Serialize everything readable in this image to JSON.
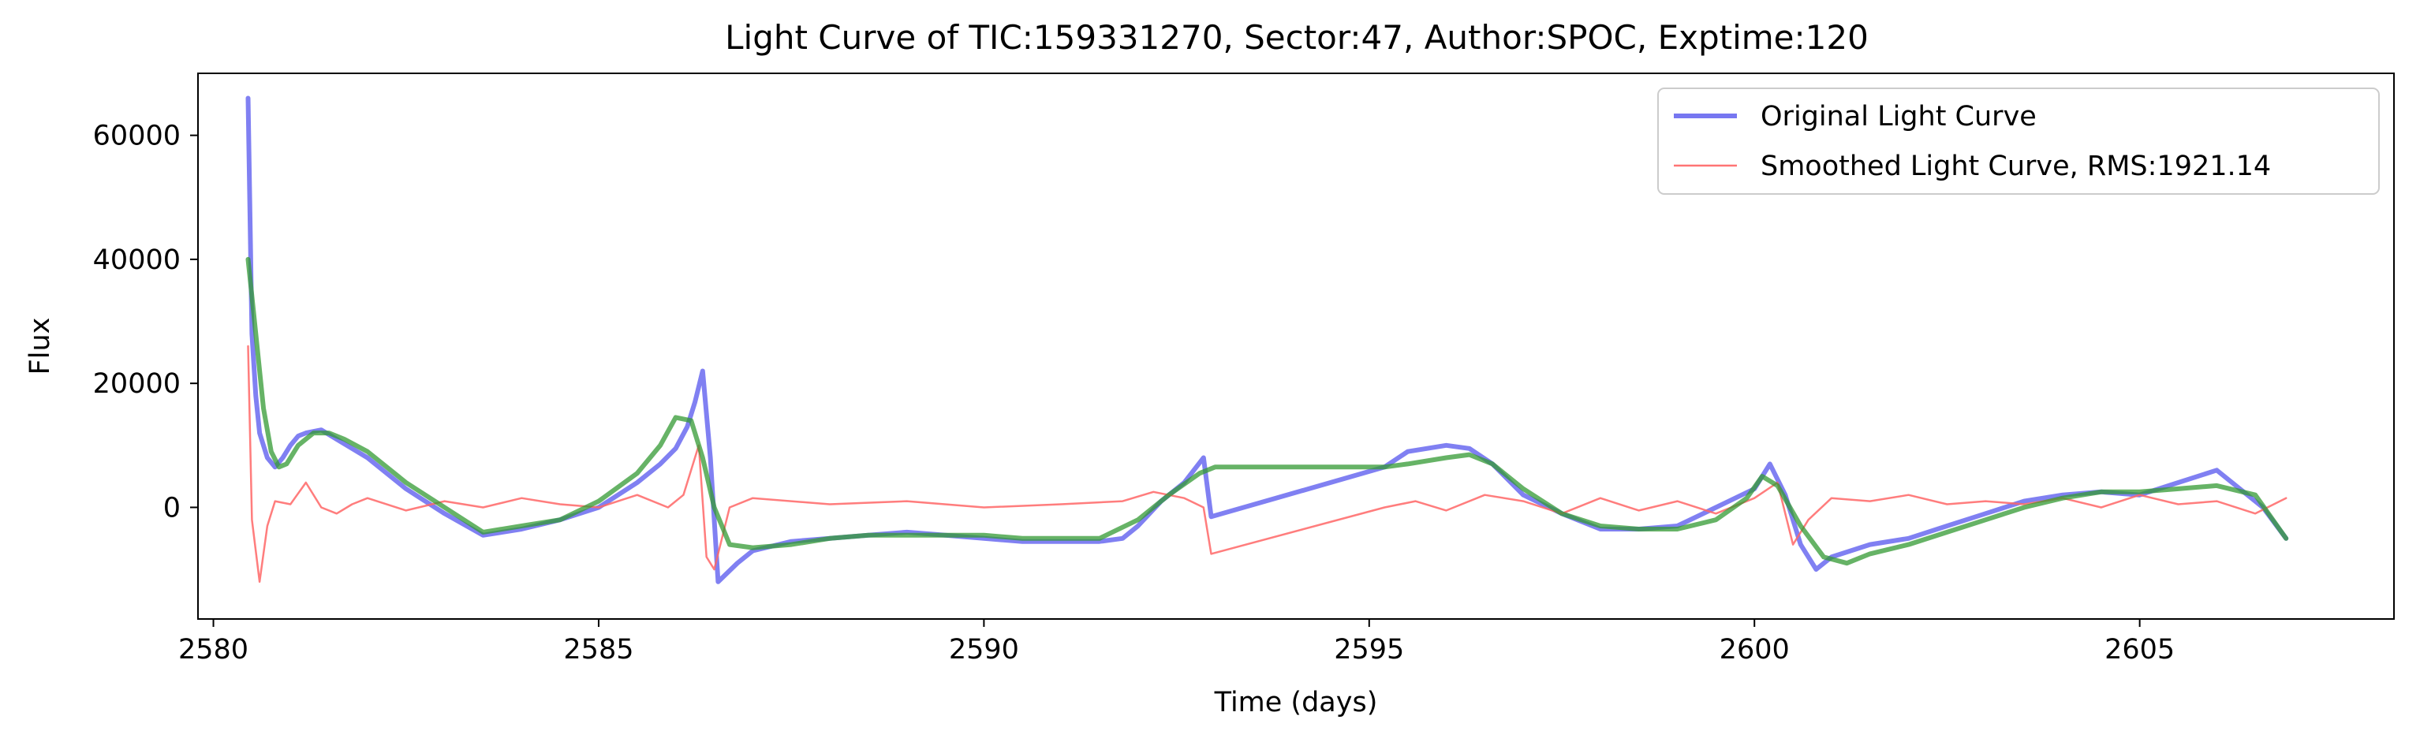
{
  "chart_data": {
    "type": "line",
    "title": "Light Curve of TIC:159331270, Sector:47, Author:SPOC, Exptime:120",
    "xlabel": "Time (days)",
    "ylabel": "Flux",
    "xlim": [
      2579.8,
      2608.3
    ],
    "ylim": [
      -18000,
      70000
    ],
    "xticks": [
      2580,
      2585,
      2590,
      2595,
      2600,
      2605
    ],
    "yticks": [
      0,
      20000,
      40000,
      60000
    ],
    "grid": false,
    "legend_position": "top-right",
    "series": [
      {
        "name": "Original Light Curve",
        "color": "#5555ee",
        "style": "thick",
        "x": [
          2580.45,
          2580.5,
          2580.55,
          2580.6,
          2580.7,
          2580.8,
          2580.9,
          2581.0,
          2581.1,
          2581.2,
          2581.4,
          2581.6,
          2581.8,
          2582.0,
          2582.5,
          2583.0,
          2583.5,
          2584.0,
          2584.5,
          2585.0,
          2585.5,
          2585.8,
          2586.0,
          2586.15,
          2586.25,
          2586.35,
          2586.45,
          2586.55,
          2586.8,
          2587.0,
          2587.5,
          2588.0,
          2588.5,
          2589.0,
          2589.5,
          2590.0,
          2590.5,
          2591.0,
          2591.5,
          2591.8,
          2592.0,
          2592.3,
          2592.6,
          2592.85,
          2592.95,
          2595.2,
          2595.5,
          2596.0,
          2596.3,
          2596.6,
          2597.0,
          2597.5,
          2598.0,
          2598.5,
          2599.0,
          2599.5,
          2600.0,
          2600.2,
          2600.4,
          2600.6,
          2600.8,
          2601.0,
          2601.5,
          2602.0,
          2602.5,
          2603.0,
          2603.5,
          2604.0,
          2604.5,
          2605.0,
          2605.5,
          2606.0,
          2606.3,
          2606.6,
          2606.9
        ],
        "y": [
          66000,
          28000,
          18000,
          12000,
          8000,
          6500,
          8000,
          10000,
          11500,
          12000,
          12500,
          11000,
          9500,
          8000,
          3000,
          -1000,
          -4500,
          -3500,
          -2000,
          0,
          4000,
          7000,
          9500,
          13000,
          17000,
          22000,
          8000,
          -12000,
          -9000,
          -7000,
          -5500,
          -5000,
          -4500,
          -4000,
          -4500,
          -5000,
          -5500,
          -5500,
          -5500,
          -5000,
          -3000,
          1000,
          4000,
          8000,
          -1500,
          6500,
          9000,
          10000,
          9500,
          7000,
          2000,
          -1000,
          -3500,
          -3500,
          -3000,
          0,
          3000,
          7000,
          2000,
          -6000,
          -10000,
          -8000,
          -6000,
          -5000,
          -3000,
          -1000,
          1000,
          2000,
          2500,
          2000,
          4000,
          6000,
          3000,
          0,
          -5000
        ]
      },
      {
        "name": "Smoothed Light Curve, RMS:1921.14",
        "color": "#ff6666",
        "style": "thin",
        "x": [
          2580.45,
          2580.5,
          2580.6,
          2580.7,
          2580.8,
          2581.0,
          2581.2,
          2581.4,
          2581.6,
          2581.8,
          2582.0,
          2582.5,
          2583.0,
          2583.5,
          2584.0,
          2584.5,
          2585.0,
          2585.5,
          2585.9,
          2586.1,
          2586.3,
          2586.4,
          2586.5,
          2586.7,
          2587.0,
          2588.0,
          2589.0,
          2590.0,
          2591.0,
          2591.8,
          2592.2,
          2592.6,
          2592.85,
          2592.95,
          2595.2,
          2595.6,
          2596.0,
          2596.5,
          2597.0,
          2597.5,
          2598.0,
          2598.5,
          2599.0,
          2599.5,
          2600.0,
          2600.3,
          2600.5,
          2600.7,
          2601.0,
          2601.5,
          2602.0,
          2602.5,
          2603.0,
          2603.5,
          2604.0,
          2604.5,
          2605.0,
          2605.5,
          2606.0,
          2606.5,
          2606.9
        ],
        "y": [
          26000,
          -2000,
          -12000,
          -3000,
          1000,
          500,
          4000,
          0,
          -1000,
          500,
          1500,
          -500,
          1000,
          0,
          1500,
          500,
          0,
          2000,
          0,
          2000,
          10000,
          -8000,
          -10000,
          0,
          1500,
          500,
          1000,
          0,
          500,
          1000,
          2500,
          1500,
          0,
          -7500,
          0,
          1000,
          -500,
          2000,
          1000,
          -1000,
          1500,
          -500,
          1000,
          -1000,
          1500,
          4000,
          -6000,
          -2000,
          1500,
          1000,
          2000,
          500,
          1000,
          500,
          1500,
          0,
          2000,
          500,
          1000,
          -1000,
          1500
        ]
      },
      {
        "name": "",
        "color": "#339933",
        "style": "thick",
        "x": [
          2580.45,
          2580.55,
          2580.65,
          2580.75,
          2580.85,
          2580.95,
          2581.1,
          2581.3,
          2581.5,
          2581.7,
          2582.0,
          2582.5,
          2583.0,
          2583.5,
          2584.0,
          2584.5,
          2585.0,
          2585.5,
          2585.8,
          2586.0,
          2586.2,
          2586.35,
          2586.5,
          2586.7,
          2587.0,
          2587.5,
          2588.0,
          2588.5,
          2589.0,
          2589.5,
          2590.0,
          2590.5,
          2591.0,
          2591.5,
          2592.0,
          2592.4,
          2592.8,
          2593.0,
          2595.2,
          2595.5,
          2596.0,
          2596.3,
          2596.6,
          2597.0,
          2597.5,
          2598.0,
          2598.5,
          2599.0,
          2599.5,
          2599.9,
          2600.1,
          2600.3,
          2600.6,
          2600.9,
          2601.2,
          2601.5,
          2602.0,
          2602.5,
          2603.0,
          2603.5,
          2604.0,
          2604.5,
          2605.0,
          2605.5,
          2606.0,
          2606.5,
          2606.9
        ],
        "y": [
          40000,
          28000,
          16000,
          9000,
          6500,
          7000,
          10000,
          12000,
          12000,
          11000,
          9000,
          4000,
          0,
          -4000,
          -3000,
          -2000,
          1000,
          5500,
          10000,
          14500,
          14000,
          8000,
          0,
          -6000,
          -6500,
          -6000,
          -5000,
          -4500,
          -4500,
          -4500,
          -4500,
          -5000,
          -5000,
          -5000,
          -2000,
          2000,
          5500,
          6500,
          6500,
          7000,
          8000,
          8500,
          7000,
          3000,
          -1000,
          -3000,
          -3500,
          -3500,
          -2000,
          1500,
          5000,
          3500,
          -3000,
          -8000,
          -9000,
          -7500,
          -6000,
          -4000,
          -2000,
          0,
          1500,
          2500,
          2500,
          3000,
          3500,
          2000,
          -5000
        ]
      }
    ]
  }
}
